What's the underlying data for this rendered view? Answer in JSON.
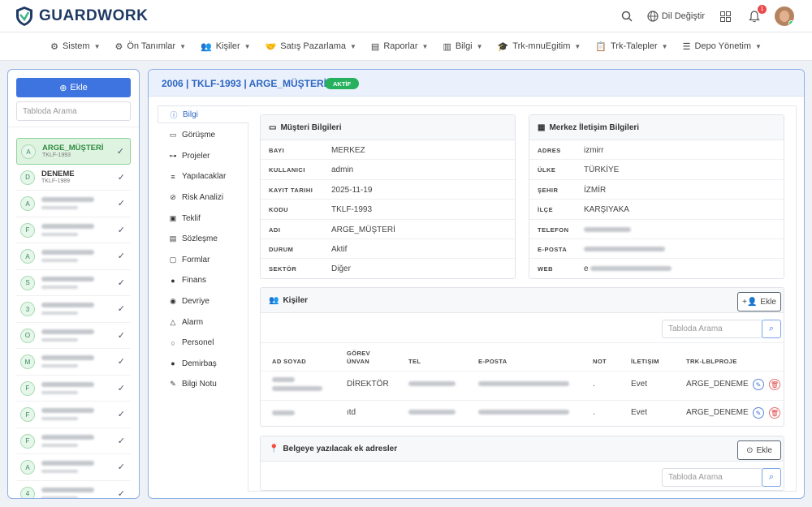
{
  "header": {
    "logo_text": "GUARDWORK",
    "language_label": "Dil Değiştir",
    "notification_count": "1"
  },
  "nav": [
    {
      "label": "Sistem",
      "icon": "gears-icon"
    },
    {
      "label": "Ön Tanımlar",
      "icon": "gear-icon"
    },
    {
      "label": "Kişiler",
      "icon": "users-icon"
    },
    {
      "label": "Satış Pazarlama",
      "icon": "handshake-icon"
    },
    {
      "label": "Raporlar",
      "icon": "file-icon"
    },
    {
      "label": "Bilgi",
      "icon": "book-icon"
    },
    {
      "label": "Trk-mnuEgitim",
      "icon": "graduation-cap-icon"
    },
    {
      "label": "Trk-Talepler",
      "icon": "clipboard-icon"
    },
    {
      "label": "Depo Yönetim",
      "icon": "list-icon"
    }
  ],
  "sidebar": {
    "add_label": "Ekle",
    "search_placeholder": "Tabloda Arama",
    "items": [
      {
        "initial": "A",
        "name": "ARGE_MÜŞTERİ",
        "code": "TKLF-1993",
        "active": true
      },
      {
        "initial": "D",
        "name": "DENEME",
        "code": "TKLF-1989"
      },
      {
        "initial": "A"
      },
      {
        "initial": "F"
      },
      {
        "initial": "A"
      },
      {
        "initial": "S"
      },
      {
        "initial": "3"
      },
      {
        "initial": "O"
      },
      {
        "initial": "M"
      },
      {
        "initial": "F"
      },
      {
        "initial": "F"
      },
      {
        "initial": "F"
      },
      {
        "initial": "A"
      },
      {
        "initial": "4"
      }
    ]
  },
  "main": {
    "title": "2006 | TKLF-1993 | ARGE_MÜŞTERİ",
    "status_badge": "AKTİF",
    "tabs": [
      {
        "label": "Bilgi",
        "icon": "info-icon",
        "active": true
      },
      {
        "label": "Görüşme",
        "icon": "chat-icon"
      },
      {
        "label": "Projeler",
        "icon": "project-diagram-icon"
      },
      {
        "label": "Yapılacaklar",
        "icon": "tasks-icon"
      },
      {
        "label": "Risk Analizi",
        "icon": "risk-icon"
      },
      {
        "label": "Teklif",
        "icon": "briefcase-icon"
      },
      {
        "label": "Sözleşme",
        "icon": "contract-icon"
      },
      {
        "label": "Formlar",
        "icon": "form-icon"
      },
      {
        "label": "Finans",
        "icon": "user-icon"
      },
      {
        "label": "Devriye",
        "icon": "eye-icon"
      },
      {
        "label": "Alarm",
        "icon": "bell-icon"
      },
      {
        "label": "Personel",
        "icon": "user-outline-icon"
      },
      {
        "label": "Demirbaş",
        "icon": "user-icon"
      },
      {
        "label": "Bilgi Notu",
        "icon": "note-icon"
      }
    ],
    "customer_info": {
      "title": "Müşteri Bilgileri",
      "rows": [
        {
          "key": "BAYI",
          "value": "MERKEZ"
        },
        {
          "key": "KULLANICI",
          "value": "admin"
        },
        {
          "key": "KAYIT TARIHI",
          "value": "2025-11-19"
        },
        {
          "key": "KODU",
          "value": "TKLF-1993"
        },
        {
          "key": "ADI",
          "value": "ARGE_MÜŞTERİ"
        },
        {
          "key": "DURUM",
          "value": "Aktif"
        },
        {
          "key": "SEKTÖR",
          "value": "Diğer"
        }
      ]
    },
    "contact_info": {
      "title": "Merkez İletişim Bilgileri",
      "rows": [
        {
          "key": "ADRES",
          "value": "izmirr"
        },
        {
          "key": "ÜLKE",
          "value": "TÜRKİYE"
        },
        {
          "key": "ŞEHIR",
          "value": "İZMİR"
        },
        {
          "key": "İLÇE",
          "value": "KARŞIYAKA"
        },
        {
          "key": "TELEFON",
          "value": ""
        },
        {
          "key": "E-POSTA",
          "value": ""
        },
        {
          "key": "WEB",
          "value": "e"
        }
      ]
    },
    "persons": {
      "title": "Kişiler",
      "add_label": "Ekle",
      "search_placeholder": "Tabloda Arama",
      "columns": [
        "AD SOYAD",
        "GÖREV",
        "ÜNVAN",
        "TEL",
        "E-POSTA",
        "NOT",
        "İLETIŞIM",
        "TRK-LBLPROJE"
      ],
      "rows": [
        {
          "gorev": "DİREKTÖR",
          "not": ".",
          "iletisim": "Evet",
          "proje": "ARGE_DENEME"
        },
        {
          "gorev": "ıtd",
          "not": ".",
          "iletisim": "Evet",
          "proje": "ARGE_DENEME"
        }
      ]
    },
    "addresses": {
      "title": "Belgeye yazılacak ek adresler",
      "add_label": "Ekle",
      "search_placeholder": "Tabloda Arama"
    }
  }
}
